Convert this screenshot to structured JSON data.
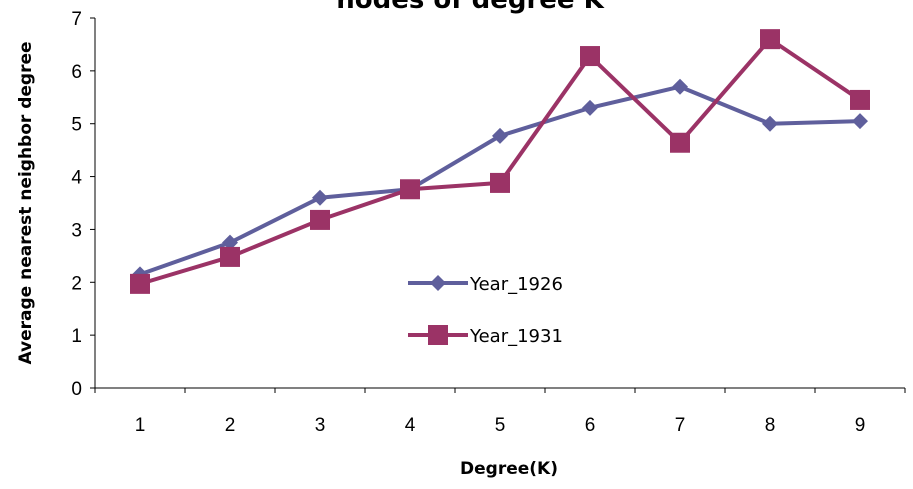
{
  "chart_data": {
    "type": "line",
    "title": "nodes of degree K",
    "xlabel": "Degree(K)",
    "ylabel": "Average nearest neighbor degree",
    "categories": [
      "1",
      "2",
      "3",
      "4",
      "5",
      "6",
      "7",
      "8",
      "9"
    ],
    "ylim": [
      0,
      7
    ],
    "yticks": [
      "0",
      "1",
      "2",
      "3",
      "4",
      "5",
      "6",
      "7"
    ],
    "grid": false,
    "legend_position": "center",
    "series": [
      {
        "name": "Year_1926",
        "color": "#5f5f9c",
        "marker": "diamond",
        "values": [
          2.15,
          2.75,
          3.6,
          3.76,
          4.77,
          5.3,
          5.7,
          5.0,
          5.05
        ]
      },
      {
        "name": "Year_1931",
        "color": "#9b3366",
        "marker": "square",
        "values": [
          1.97,
          2.48,
          3.18,
          3.76,
          3.88,
          6.28,
          4.64,
          6.6,
          5.45
        ]
      }
    ]
  }
}
